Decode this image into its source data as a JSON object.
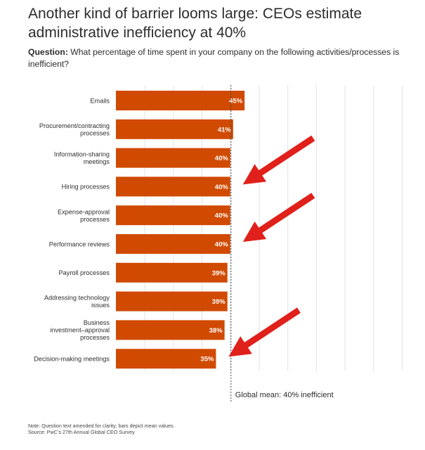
{
  "header": {
    "title_line1": "Another kind of barrier looms large: CEOs estimate",
    "title_line2": "administrative inefficiency at 40%",
    "question_label": "Question:",
    "question_text": " What percentage of time spent in your company on the following activities/processes is inefficient?"
  },
  "chart_data": {
    "type": "bar",
    "orientation": "horizontal",
    "title": "Another kind of barrier looms large: CEOs estimate administrative inefficiency at 40%",
    "categories": [
      [
        "Emails"
      ],
      [
        "Procurement/contracting",
        "processes"
      ],
      [
        "Information-sharing",
        "meetings"
      ],
      [
        "Hiring processes"
      ],
      [
        "Expense-approval",
        "processes"
      ],
      [
        "Performance reviews"
      ],
      [
        "Payroll processes"
      ],
      [
        "Addressing technology",
        "issues"
      ],
      [
        "Business",
        "investment–approval",
        "processes"
      ],
      [
        "Decision-making meetings"
      ]
    ],
    "values": [
      45,
      41,
      40,
      40,
      40,
      40,
      39,
      39,
      38,
      35
    ],
    "value_labels": [
      "45%",
      "41%",
      "40%",
      "40%",
      "40%",
      "40%",
      "39%",
      "39%",
      "38%",
      "35%"
    ],
    "xlim": [
      0,
      100
    ],
    "mean_value": 40,
    "mean_label": "Global mean: 40% inefficient",
    "bar_color": "#d04a02",
    "arrow_color": "#e0201b",
    "arrow_targets": [
      3,
      5,
      9
    ],
    "grid": true
  },
  "footer": {
    "note": "Note: Question text amended for clarity; bars depict mean values.",
    "source": "Source: PwC’s 27th Annual Global CEO Survey"
  }
}
